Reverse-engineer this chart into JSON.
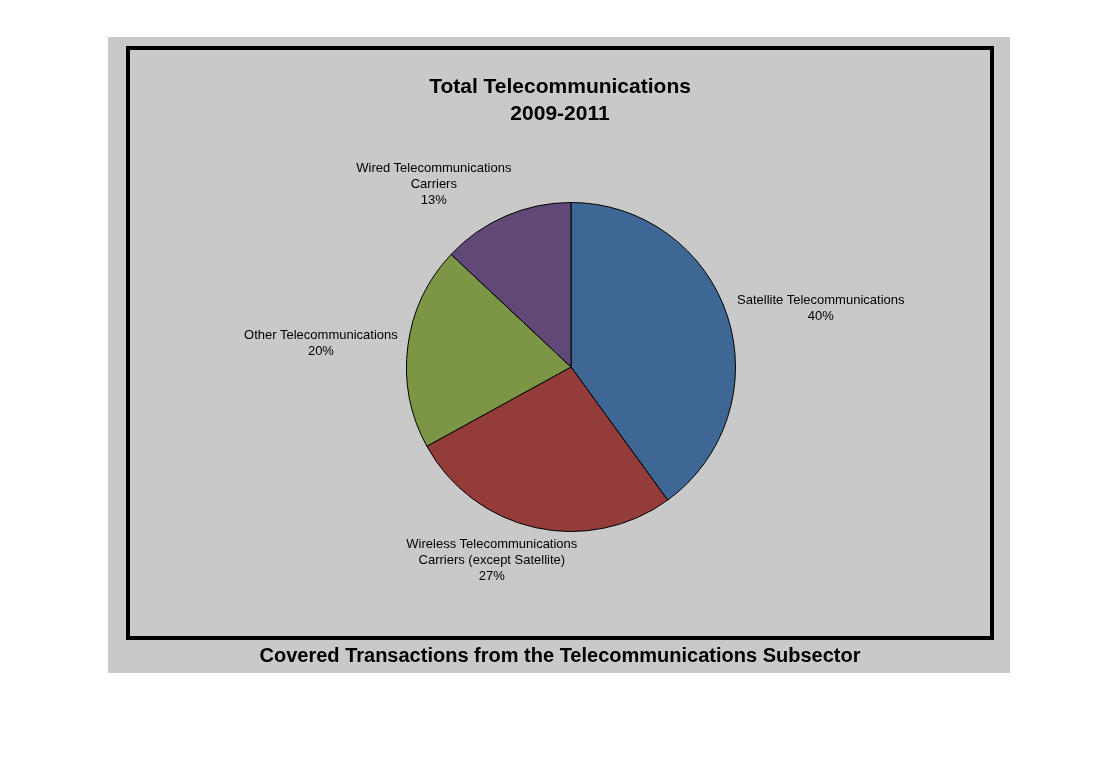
{
  "chart_data": {
    "type": "pie",
    "title": "Total Telecommunications\n2009-2011",
    "categories": [
      "Satellite Telecommunications",
      "Wireless Telecommunications Carriers (except Satellite)",
      "Other Telecommunications",
      "Wired Telecommunications Carriers"
    ],
    "values": [
      40,
      27,
      20,
      13
    ],
    "colors": [
      "#3f6795",
      "#933c3a",
      "#7c9646",
      "#604877"
    ],
    "value_labels": [
      "40%",
      "27%",
      "20%",
      "13%"
    ],
    "annotations": [
      "Covered Transactions from the Telecommunications Subsector"
    ]
  }
}
